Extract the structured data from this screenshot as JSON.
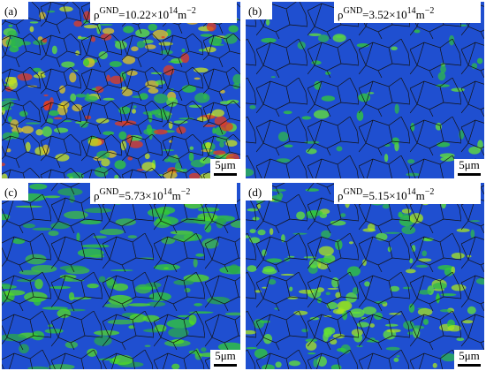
{
  "panels": [
    {
      "label": "(a)",
      "density": {
        "symbol": "ρ",
        "symbol_sup": "GND",
        "value": "=10.22×10",
        "value_sup": "14",
        "unit": "m",
        "unit_sup": "−2"
      },
      "scale_bar": "5μm"
    },
    {
      "label": "(b)",
      "density": {
        "symbol": "ρ",
        "symbol_sup": "GND",
        "value": "=3.52×10",
        "value_sup": "14",
        "unit": "m",
        "unit_sup": "−2"
      },
      "scale_bar": "5μm"
    },
    {
      "label": "(c)",
      "density": {
        "symbol": "ρ",
        "symbol_sup": "GND",
        "value": "=5.73×10",
        "value_sup": "14",
        "unit": "m",
        "unit_sup": "−2"
      },
      "scale_bar": "5μm"
    },
    {
      "label": "(d)",
      "density": {
        "symbol": "ρ",
        "symbol_sup": "GND",
        "value": "=5.15×10",
        "value_sup": "14",
        "unit": "m",
        "unit_sup": "−2"
      },
      "scale_bar": "5μm"
    }
  ]
}
